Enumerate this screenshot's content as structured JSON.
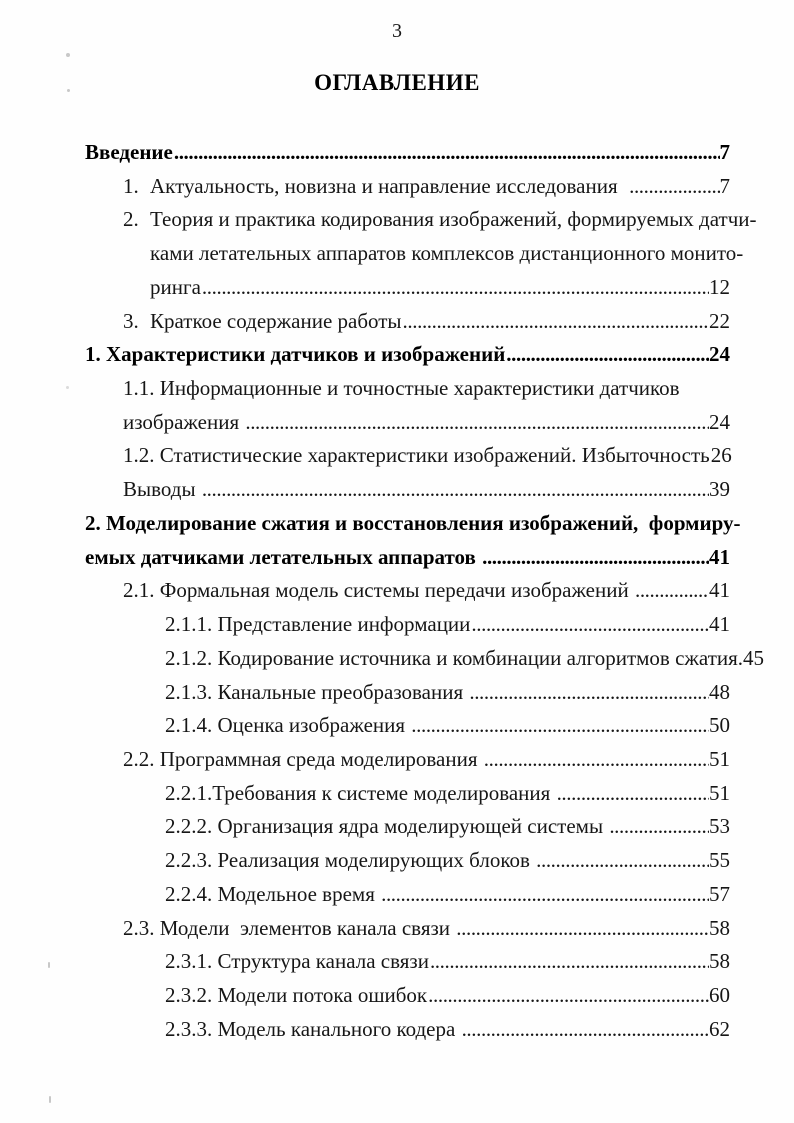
{
  "page": {
    "number": "3",
    "title": "ОГЛАВЛЕНИЕ"
  },
  "toc": {
    "rows": [
      {
        "text": "Введение",
        "page": "7",
        "style": "chapter",
        "indent": "0",
        "leader": true
      },
      {
        "num": "1.",
        "text": "Актуальность, новизна и направление исследования  ",
        "page": "7",
        "style": "item",
        "indent": "1",
        "leader": true
      },
      {
        "num": "2.",
        "text": "Теория и практика кодирования изображений, формируемых датчи-",
        "style": "item",
        "indent": "1",
        "leader": false
      },
      {
        "text": "ками летательных аппаратов комплексов дистанционного монито-",
        "style": "item",
        "indent": "1t",
        "leader": false
      },
      {
        "text": "ринга",
        "page": "12",
        "style": "item",
        "indent": "1t",
        "leader": true
      },
      {
        "num": "3.",
        "text": "Краткое содержание работы",
        "page": "22",
        "style": "item",
        "indent": "1",
        "leader": true
      },
      {
        "text": "1. Характеристики датчиков и изображений",
        "page": "24",
        "style": "chapter",
        "indent": "0",
        "leader": true
      },
      {
        "text": "1.1. Информационные и точностные характеристики датчиков",
        "style": "item",
        "indent": "1",
        "leader": false
      },
      {
        "text": "изображения ",
        "page": "24",
        "style": "item",
        "indent": "1",
        "leader": true
      },
      {
        "text": "1.2. Статистические характеристики изображений. Избыточность",
        "page": "26",
        "style": "item",
        "indent": "1",
        "leader": true
      },
      {
        "text": "Выводы ",
        "page": "39",
        "style": "item",
        "indent": "1",
        "leader": true
      },
      {
        "text": "2. Моделирование сжатия и восстановления изображений,  формиру-",
        "style": "chapter",
        "indent": "0",
        "leader": false
      },
      {
        "text": "емых датчиками летательных аппаратов ",
        "page": "41",
        "style": "chapter",
        "indent": "0",
        "leader": true
      },
      {
        "text": "2.1. Формальная модель системы передачи изображений ",
        "page": "41",
        "style": "item",
        "indent": "1",
        "leader": true
      },
      {
        "text": "2.1.1. Представление информации",
        "page": "41",
        "style": "item",
        "indent": "2",
        "leader": true
      },
      {
        "text": "2.1.2. Кодирование источника и комбинации алгоритмов сжатия.",
        "page": "45",
        "style": "item",
        "indent": "2",
        "leader": false
      },
      {
        "text": "2.1.3. Канальные преобразования ",
        "page": "48",
        "style": "item",
        "indent": "2",
        "leader": true
      },
      {
        "text": "2.1.4. Оценка изображения ",
        "page": "50",
        "style": "item",
        "indent": "2",
        "leader": true
      },
      {
        "text": "2.2. Программная среда моделирования ",
        "page": "51",
        "style": "item",
        "indent": "1",
        "leader": true
      },
      {
        "text": "2.2.1.Требования к системе моделирования ",
        "page": "51",
        "style": "item",
        "indent": "2",
        "leader": true
      },
      {
        "text": "2.2.2. Организация ядра моделирующей системы ",
        "page": "53",
        "style": "item",
        "indent": "2",
        "leader": true
      },
      {
        "text": "2.2.3. Реализация моделирующих блоков ",
        "page": "55",
        "style": "item",
        "indent": "2",
        "leader": true
      },
      {
        "text": "2.2.4. Модельное время ",
        "page": "57",
        "style": "item",
        "indent": "2",
        "leader": true
      },
      {
        "text": "2.3. Модели  элементов канала связи ",
        "page": "58",
        "style": "item",
        "indent": "1",
        "leader": true
      },
      {
        "text": "2.3.1. Структура канала связи",
        "page": "58",
        "style": "item",
        "indent": "2",
        "leader": true
      },
      {
        "text": "2.3.2. Модели потока ошибок",
        "page": "60",
        "style": "item",
        "indent": "2",
        "leader": true
      },
      {
        "text": "2.3.3. Модель канального кодера ",
        "page": "62",
        "style": "item",
        "indent": "2",
        "leader": true
      }
    ]
  }
}
